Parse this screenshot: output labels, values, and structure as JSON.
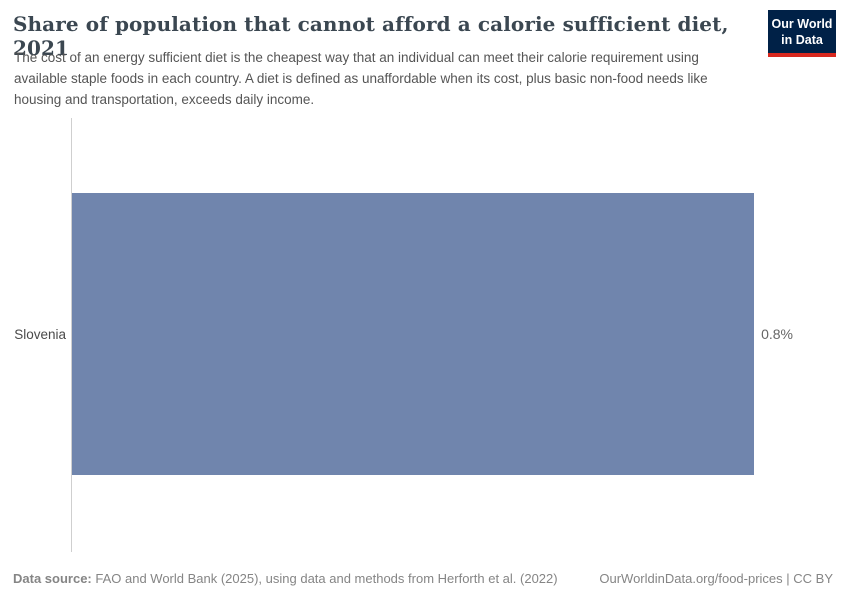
{
  "header": {
    "title": "Share of population that cannot afford a calorie sufficient diet, 2021",
    "subtitle": "The cost of an energy sufficient diet is the cheapest way that an individual can meet their calorie requirement using available staple foods in each country. A diet is defined as unaffordable when its cost, plus basic non-food needs like housing and transportation, exceeds daily income.",
    "logo": {
      "line1": "Our World",
      "line2": "in Data",
      "bg_color": "#002147",
      "accent_color": "#d8281f"
    }
  },
  "chart_data": {
    "type": "bar",
    "orientation": "horizontal",
    "title": "Share of population that cannot afford a calorie sufficient diet, 2021",
    "year": "2021",
    "categories": [
      "Slovenia"
    ],
    "values": [
      0.8
    ],
    "value_labels": [
      "0.8%"
    ],
    "unit": "%",
    "xlim": [
      0,
      0.8
    ],
    "bar_color": "#7085ad",
    "grid": false,
    "legend": false
  },
  "footer": {
    "source_label": "Data source:",
    "source_text": " FAO and World Bank (2025), using data and methods from Herforth et al. (2022)",
    "right_text": "OurWorldinData.org/food-prices | CC BY"
  }
}
